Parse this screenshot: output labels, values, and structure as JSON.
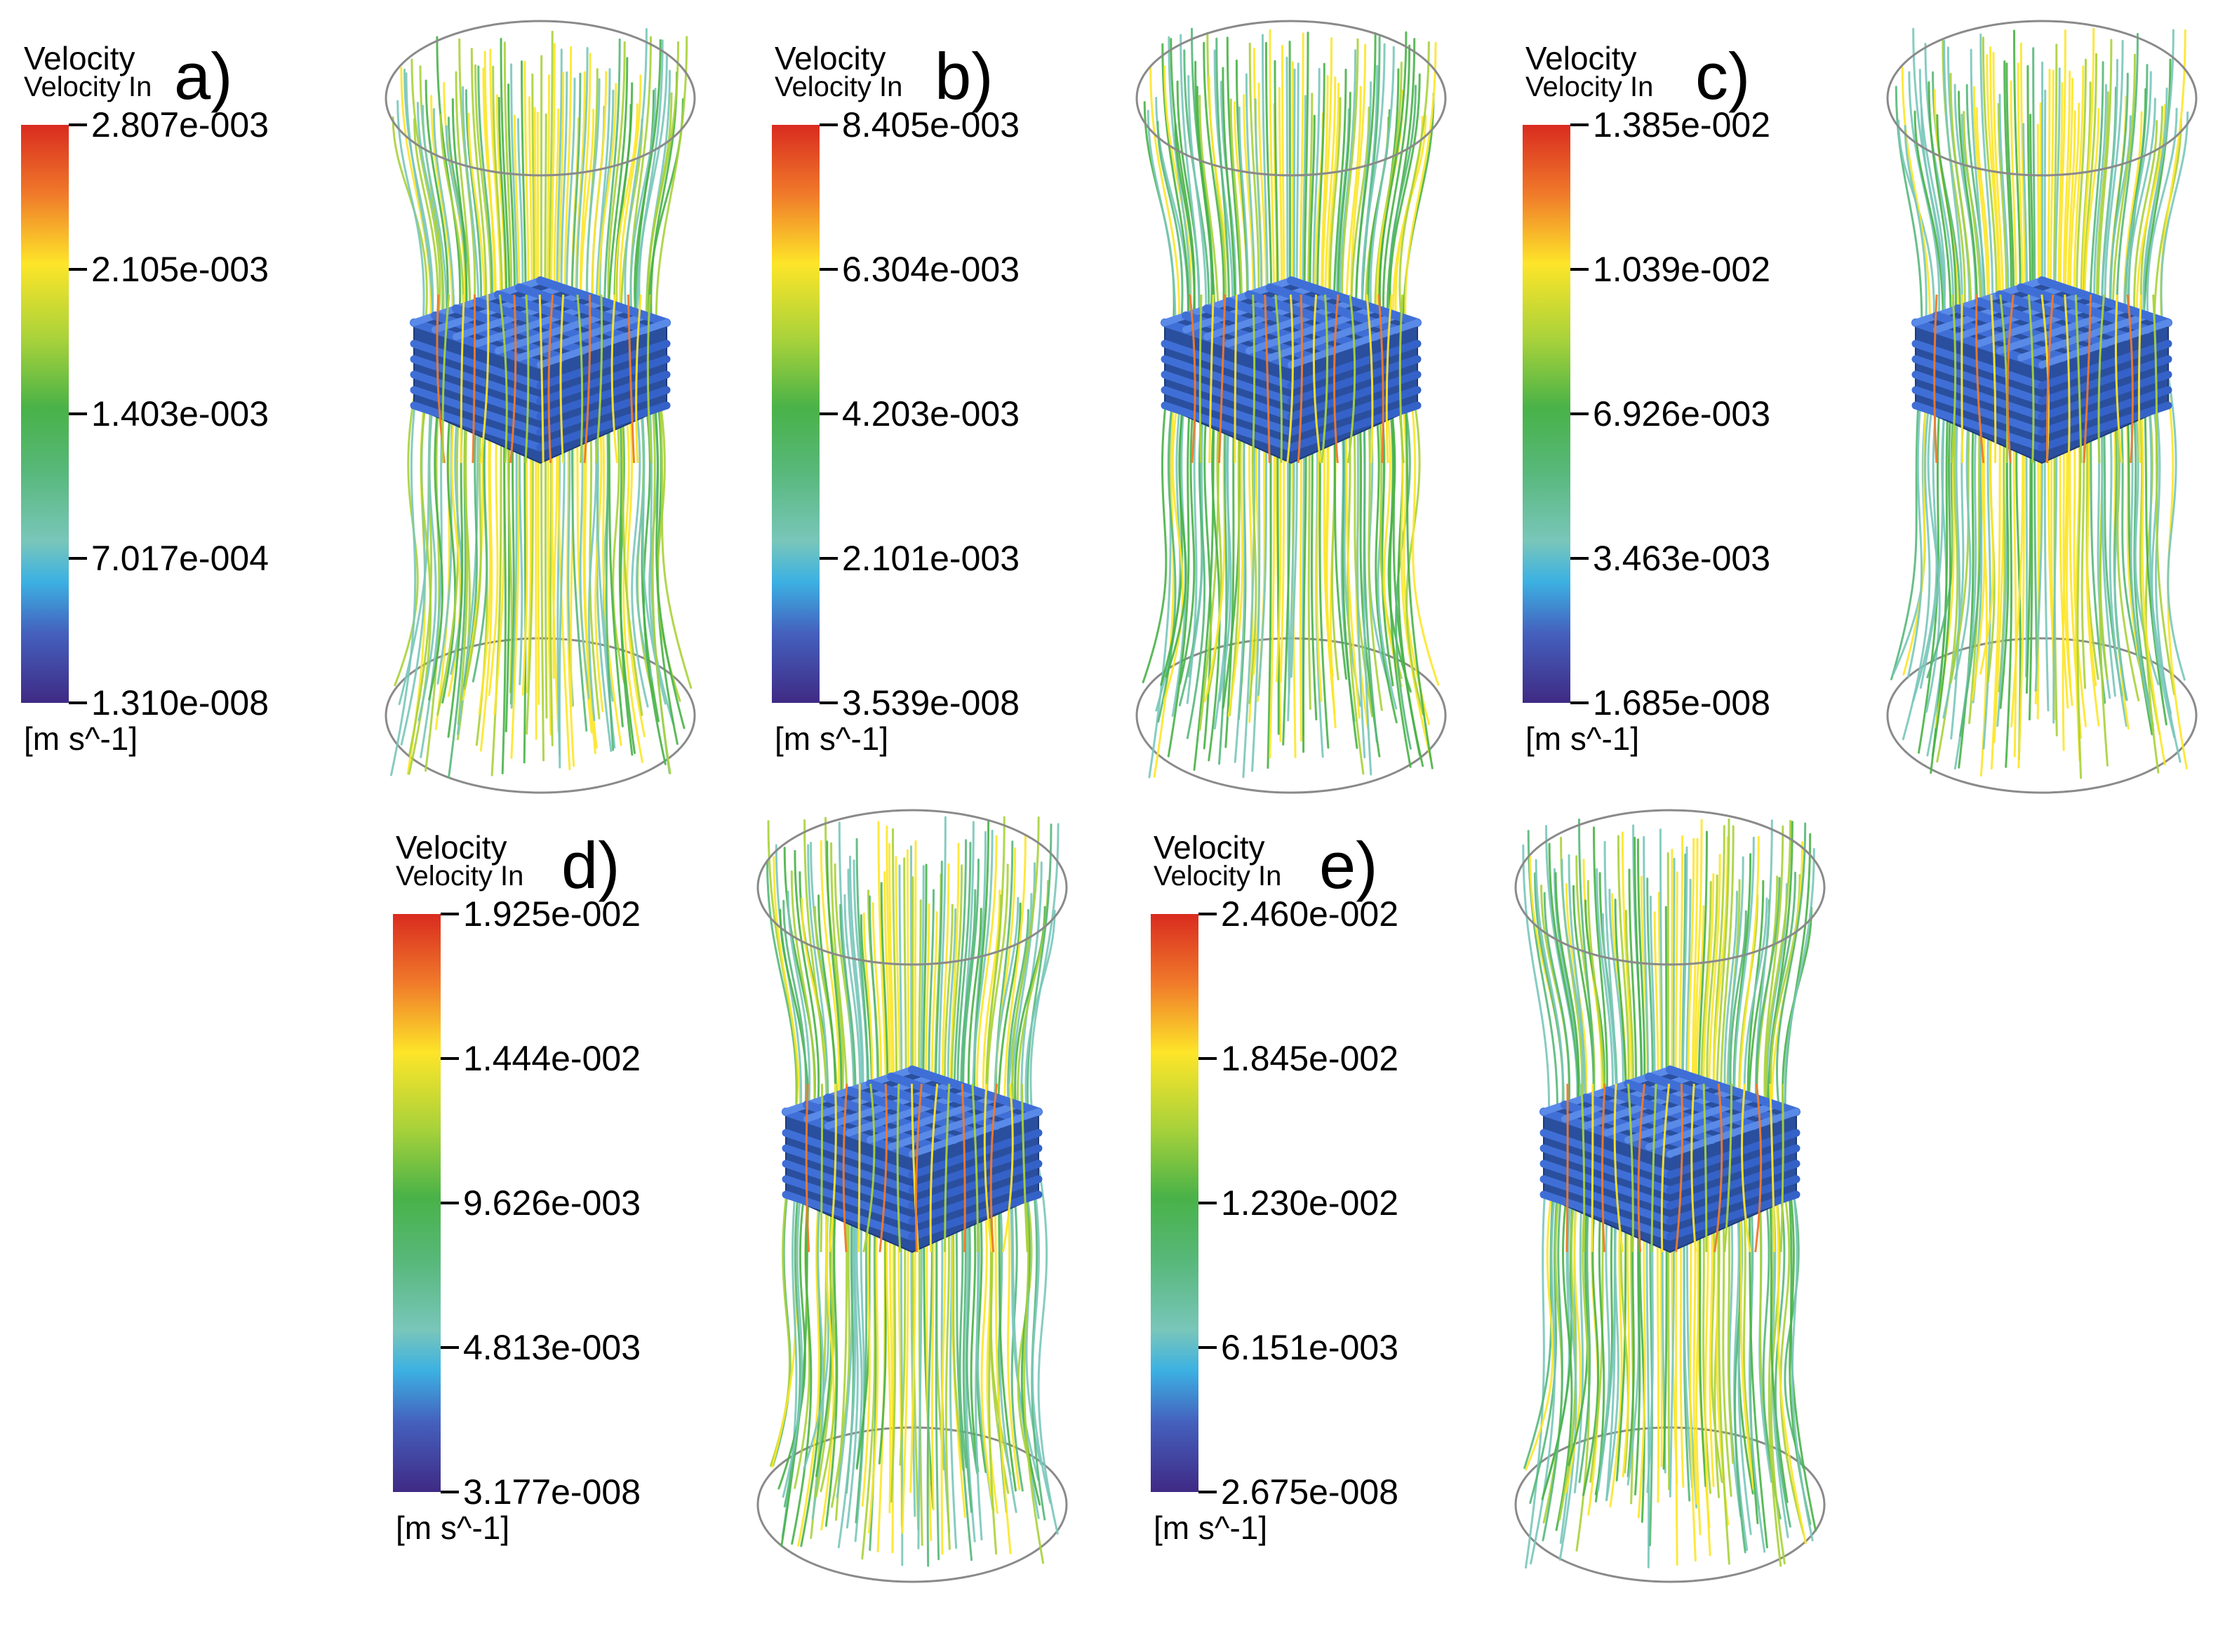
{
  "panels": [
    {
      "letter": "a)",
      "title": "Velocity",
      "subtitle": "Velocity In",
      "unit": "[m s^-1]",
      "ticks": [
        "2.807e-003",
        "2.105e-003",
        "1.403e-003",
        "7.017e-004",
        "1.310e-008"
      ]
    },
    {
      "letter": "b)",
      "title": "Velocity",
      "subtitle": "Velocity In",
      "unit": "[m s^-1]",
      "ticks": [
        "8.405e-003",
        "6.304e-003",
        "4.203e-003",
        "2.101e-003",
        "3.539e-008"
      ]
    },
    {
      "letter": "c)",
      "title": "Velocity",
      "subtitle": "Velocity In",
      "unit": "[m s^-1]",
      "ticks": [
        "1.385e-002",
        "1.039e-002",
        "6.926e-003",
        "3.463e-003",
        "1.685e-008"
      ]
    },
    {
      "letter": "d)",
      "title": "Velocity",
      "subtitle": "Velocity In",
      "unit": "[m s^-1]",
      "ticks": [
        "1.925e-002",
        "1.444e-002",
        "9.626e-003",
        "4.813e-003",
        "3.177e-008"
      ]
    },
    {
      "letter": "e)",
      "title": "Velocity",
      "subtitle": "Velocity In",
      "unit": "[m s^-1]",
      "ticks": [
        "2.460e-002",
        "1.845e-002",
        "1.230e-002",
        "6.151e-003",
        "2.675e-008"
      ]
    }
  ],
  "colors": {
    "colormap": [
      "#3f2a84",
      "#4460bd",
      "#3cb1e2",
      "#79c6ba",
      "#57b87a",
      "#49b248",
      "#a9d23a",
      "#fde529",
      "#f07a2a",
      "#d92b1f"
    ],
    "scaffold": "#3f6fd6",
    "outline": "#8a8a8a"
  }
}
